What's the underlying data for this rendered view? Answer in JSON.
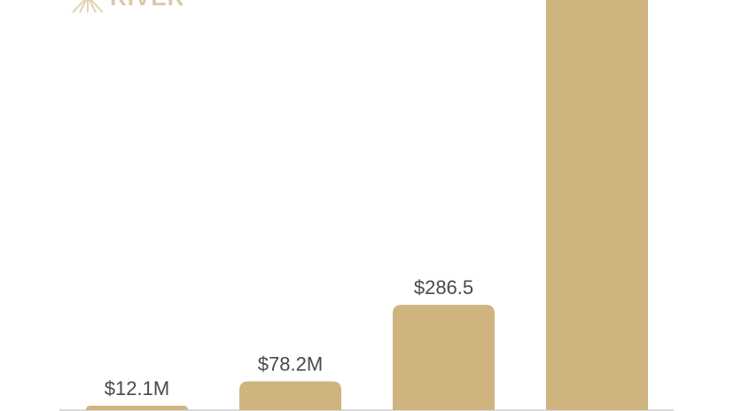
{
  "logo": "RIVER",
  "chart_data": {
    "type": "bar",
    "categories": [
      null,
      null,
      null,
      null
    ],
    "values": [
      12.1,
      78.2,
      286.5,
      1150
    ],
    "value_labels": [
      "$12.1M",
      "$78.2M",
      "$286.5",
      null
    ],
    "color": "#d0b47f"
  }
}
